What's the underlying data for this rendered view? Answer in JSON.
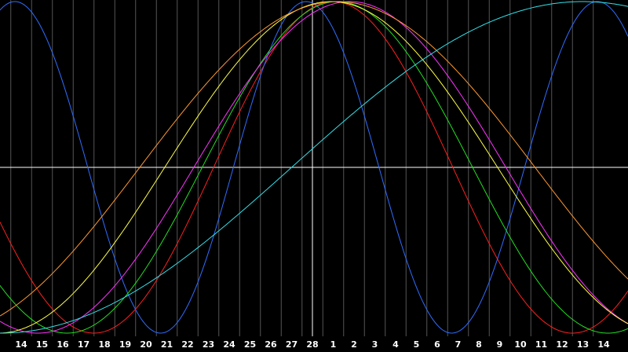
{
  "chart_data": {
    "type": "line",
    "title": "",
    "xlabel": "",
    "ylabel": "",
    "x": [
      14,
      15,
      16,
      17,
      18,
      19,
      20,
      21,
      22,
      23,
      24,
      25,
      26,
      27,
      28,
      1,
      2,
      3,
      4,
      5,
      6,
      7,
      8,
      9,
      10,
      11,
      12,
      13,
      14
    ],
    "ylim": [
      -1,
      1
    ],
    "grid": true,
    "legend": "none",
    "colors": {
      "background": "#000000",
      "grid": "#555555",
      "axis": "#ffffff",
      "tick_text": "#ffffff"
    },
    "series": [
      {
        "color": "#ff2020",
        "period_days": 23,
        "peak_day": 1.0
      },
      {
        "color": "#2f6dff",
        "period_days": 14,
        "peak_day": 27.7
      },
      {
        "color": "#22e022",
        "period_days": 26,
        "peak_day": 1.2
      },
      {
        "color": "#ff33ff",
        "period_days": 30,
        "peak_day": 1.8
      },
      {
        "color": "#ffff44",
        "period_days": 32,
        "peak_day": 0.9
      },
      {
        "color": "#ff9933",
        "period_days": 38,
        "peak_day": 1.2
      },
      {
        "color": "#33e0e8",
        "period_days": 56,
        "peak_day": 13.0
      }
    ]
  }
}
